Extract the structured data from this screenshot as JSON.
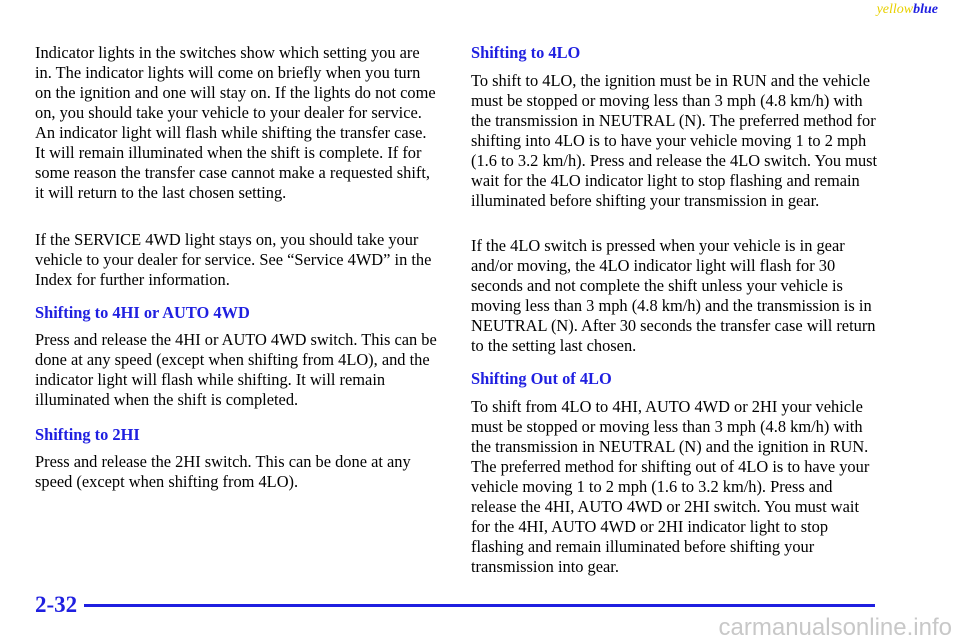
{
  "header": {
    "tag_yellow": "yellow",
    "tag_blue": "blue"
  },
  "left_column": {
    "paragraph_1": "Indicator lights in the switches show which setting you are in. The indicator lights will come on briefly when you turn on the ignition and one will stay on. If the lights do not come on, you should take your vehicle to your dealer for service. An indicator light will flash while shifting the transfer case. It will remain illuminated when the shift is complete. If for some reason the transfer case cannot make a requested shift, it will return to the last chosen setting.",
    "paragraph_2": "If the SERVICE 4WD light stays on, you should take your vehicle to your dealer for service. See “Service 4WD” in the Index for further information.",
    "heading_1": "Shifting to 4HI or AUTO 4WD",
    "paragraph_3": "Press and release the 4HI or AUTO 4WD switch. This can be done at any speed (except when shifting from 4LO), and the indicator light will flash while shifting. It will remain illuminated when the shift is completed.",
    "heading_2": "Shifting to 2HI",
    "paragraph_4": "Press and release the 2HI switch. This can be done at any speed (except when shifting from 4LO)."
  },
  "right_column": {
    "heading_1": "Shifting to 4LO",
    "paragraph_1": "To shift to 4LO, the ignition must be in RUN and the vehicle must be stopped or moving less than 3 mph (4.8 km/h) with the transmission in NEUTRAL (N). The preferred method for shifting into 4LO is to have your vehicle moving 1 to 2 mph (1.6 to 3.2 km/h). Press and release the 4LO switch. You must wait for the 4LO indicator light to stop flashing and remain illuminated before shifting your transmission in gear.",
    "paragraph_2": "If the 4LO switch is pressed when your vehicle is in gear and/or moving, the 4LO indicator light will flash for 30 seconds and not complete the shift unless your vehicle is moving less than 3 mph (4.8 km/h) and the transmission is in NEUTRAL (N). After 30 seconds the transfer case will return to the setting last chosen.",
    "heading_2": "Shifting Out of 4LO",
    "paragraph_3": "To shift from 4LO to 4HI, AUTO 4WD or 2HI your vehicle must be stopped or moving less than 3 mph (4.8 km/h) with the transmission in NEUTRAL (N) and the ignition in RUN. The preferred method for shifting out of 4LO is to have your vehicle moving 1 to 2 mph (1.6 to 3.2 km/h). Press and release the 4HI, AUTO 4WD or 2HI switch. You must wait for the 4HI, AUTO 4WD or 2HI indicator light to stop flashing and remain illuminated before shifting your transmission into gear."
  },
  "footer": {
    "page_number": "2-32",
    "watermark": "carmanualsonline.info"
  }
}
